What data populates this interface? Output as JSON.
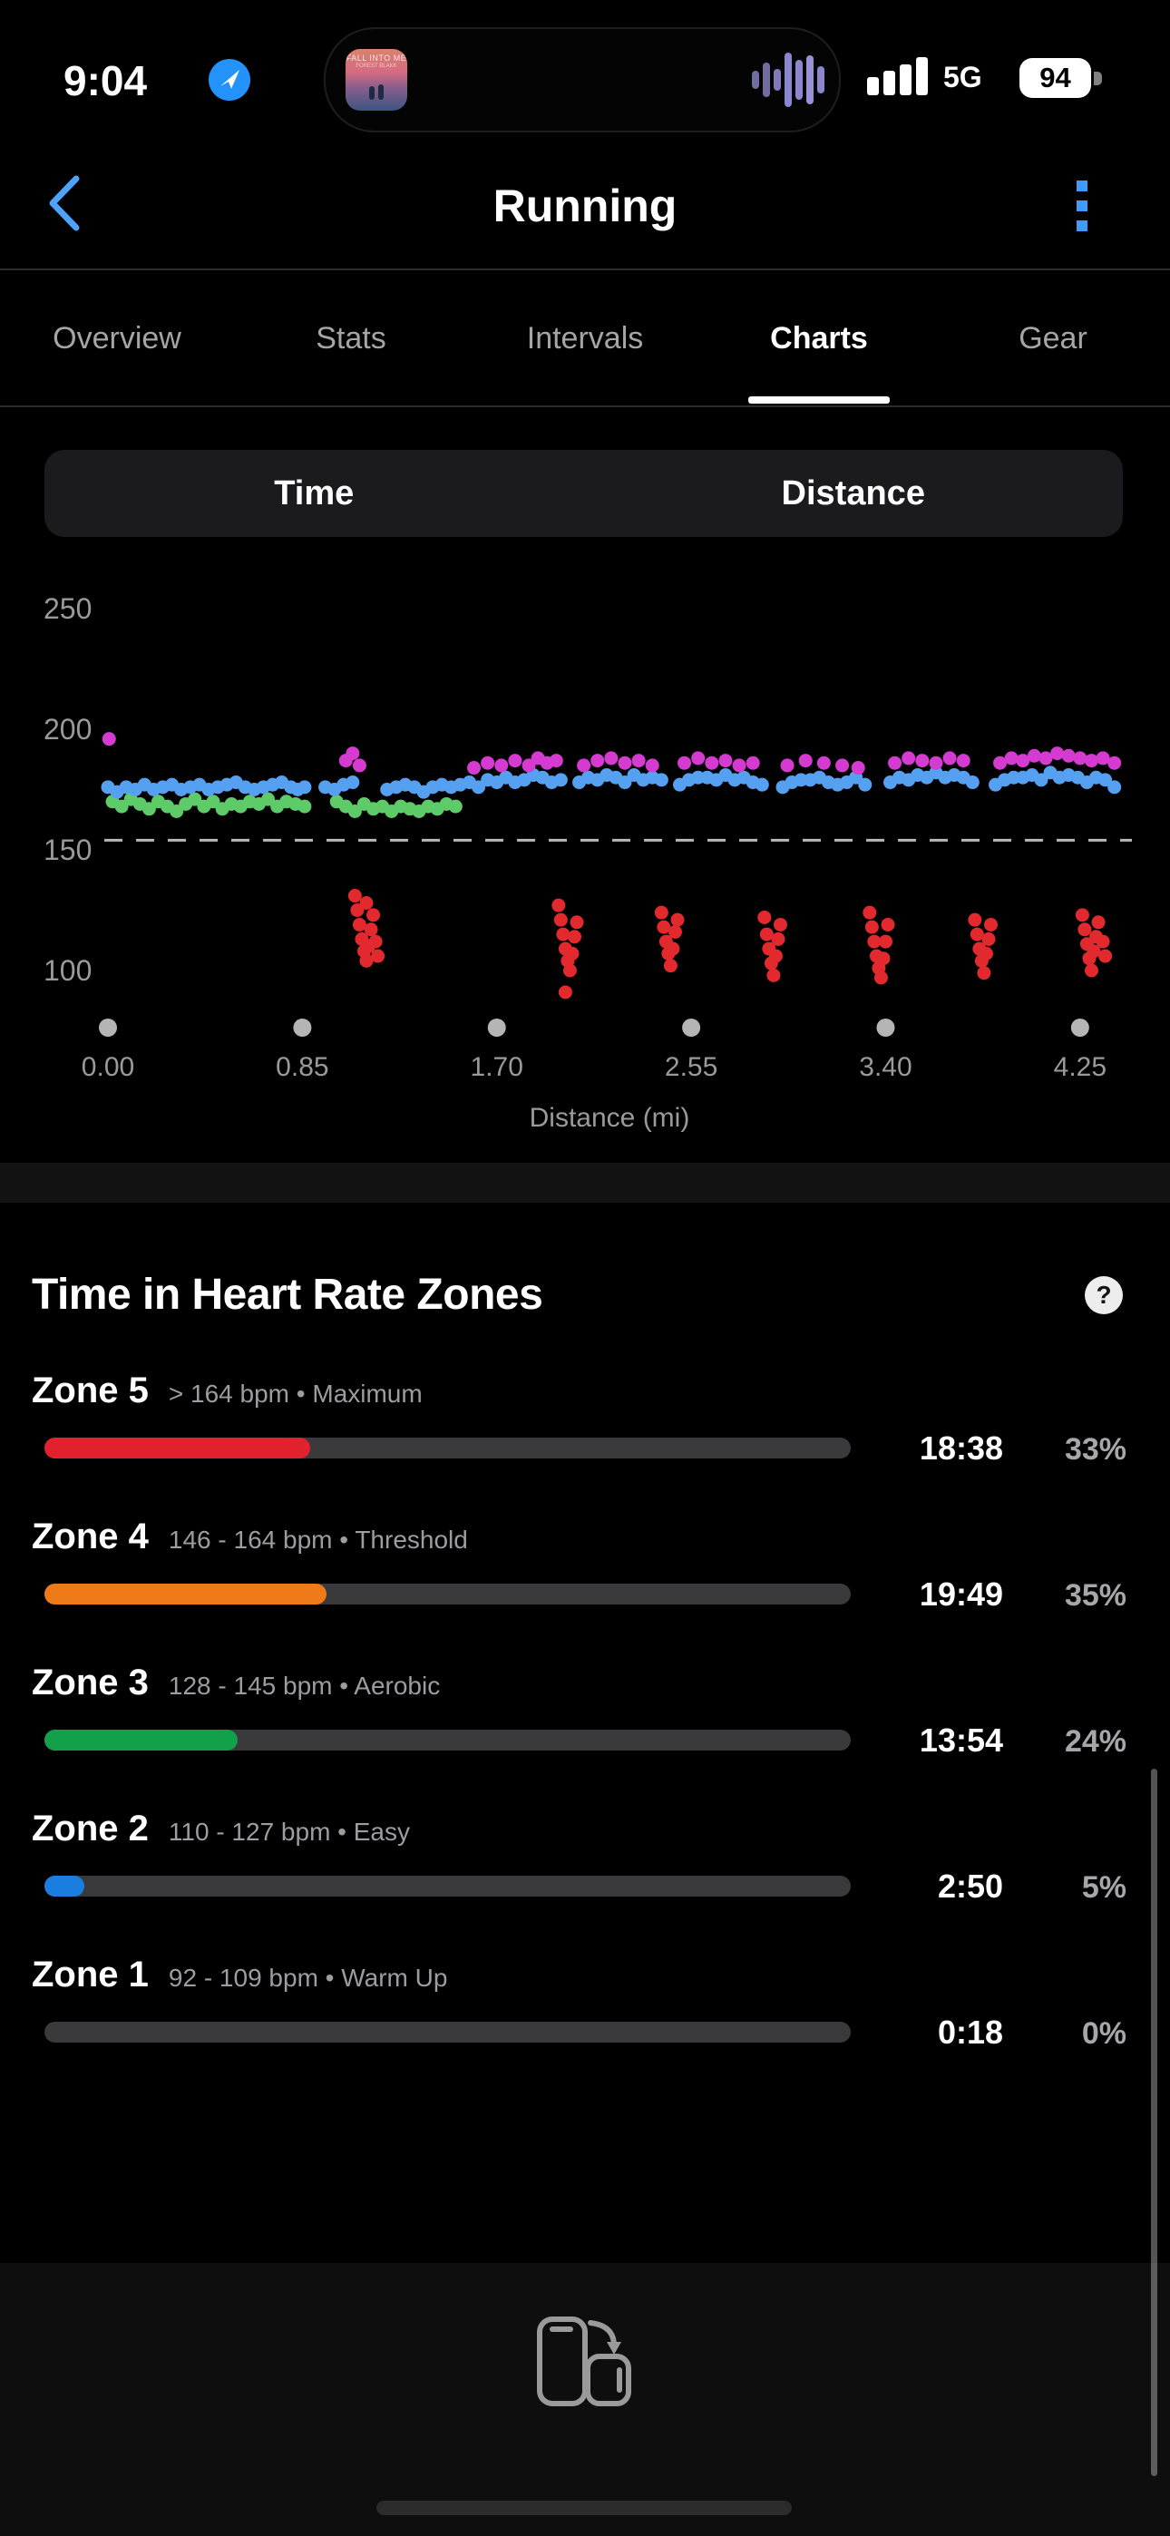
{
  "status_bar": {
    "time": "9:04",
    "network_label": "5G",
    "battery_percent": "94",
    "artwork_line1": "FALL INTO ME",
    "artwork_line2": "FOREST BLAKK"
  },
  "nav": {
    "title": "Running"
  },
  "tabs": {
    "items": [
      "Overview",
      "Stats",
      "Intervals",
      "Charts",
      "Gear"
    ],
    "active": "Charts"
  },
  "segmented": {
    "left": "Time",
    "right": "Distance",
    "selected": "Distance"
  },
  "chart_data": {
    "type": "scatter",
    "xlabel": "Distance (mi)",
    "x_ticks": [
      "0.00",
      "0.85",
      "1.70",
      "2.55",
      "3.40",
      "4.25"
    ],
    "x_tick_values": [
      0,
      0.85,
      1.7,
      2.55,
      3.4,
      4.25
    ],
    "y_ticks": [
      250,
      200,
      150,
      100
    ],
    "x_range": [
      0,
      4.45
    ],
    "y_range": [
      85,
      262
    ],
    "threshold_value": 154,
    "grid": "off",
    "legend": "none",
    "point_colors": {
      "high": "#d53bd0",
      "mid": "#56a0f2",
      "low": "#5ecb69",
      "walk": "#e22a2e"
    },
    "series": [
      {
        "name": "low",
        "points": [
          [
            0.02,
            170
          ],
          [
            0.06,
            168
          ],
          [
            0.1,
            171
          ],
          [
            0.14,
            169
          ],
          [
            0.18,
            167
          ],
          [
            0.22,
            170
          ],
          [
            0.26,
            168
          ],
          [
            0.3,
            166
          ],
          [
            0.34,
            169
          ],
          [
            0.38,
            171
          ],
          [
            0.42,
            168
          ],
          [
            0.46,
            170
          ],
          [
            0.5,
            167
          ],
          [
            0.54,
            169
          ],
          [
            0.58,
            168
          ],
          [
            0.62,
            170
          ],
          [
            0.66,
            169
          ],
          [
            0.7,
            171
          ],
          [
            0.74,
            168
          ],
          [
            0.78,
            170
          ],
          [
            0.82,
            169
          ],
          [
            0.86,
            168
          ],
          [
            1.0,
            170
          ],
          [
            1.04,
            168
          ],
          [
            1.08,
            166
          ],
          [
            1.12,
            169
          ],
          [
            1.16,
            167
          ],
          [
            1.2,
            168
          ],
          [
            1.24,
            166
          ],
          [
            1.28,
            168
          ],
          [
            1.32,
            167
          ],
          [
            1.36,
            166
          ],
          [
            1.4,
            168
          ],
          [
            1.44,
            167
          ],
          [
            1.48,
            169
          ],
          [
            1.52,
            168
          ]
        ]
      },
      {
        "name": "mid",
        "points": [
          [
            0.0,
            176
          ],
          [
            0.04,
            174
          ],
          [
            0.08,
            176
          ],
          [
            0.12,
            175
          ],
          [
            0.16,
            177
          ],
          [
            0.2,
            175
          ],
          [
            0.24,
            176
          ],
          [
            0.28,
            177
          ],
          [
            0.32,
            175
          ],
          [
            0.36,
            176
          ],
          [
            0.4,
            177
          ],
          [
            0.44,
            175
          ],
          [
            0.48,
            176
          ],
          [
            0.52,
            177
          ],
          [
            0.56,
            178
          ],
          [
            0.6,
            176
          ],
          [
            0.64,
            175
          ],
          [
            0.68,
            176
          ],
          [
            0.72,
            177
          ],
          [
            0.76,
            178
          ],
          [
            0.8,
            176
          ],
          [
            0.83,
            175
          ],
          [
            0.86,
            176
          ],
          [
            0.95,
            176
          ],
          [
            0.99,
            175
          ],
          [
            1.03,
            177
          ],
          [
            1.07,
            178
          ],
          [
            1.22,
            175
          ],
          [
            1.26,
            176
          ],
          [
            1.3,
            177
          ],
          [
            1.34,
            176
          ],
          [
            1.38,
            174
          ],
          [
            1.42,
            176
          ],
          [
            1.46,
            177
          ],
          [
            1.5,
            176
          ],
          [
            1.54,
            177
          ],
          [
            1.58,
            178
          ],
          [
            1.62,
            176
          ],
          [
            1.66,
            179
          ],
          [
            1.7,
            178
          ],
          [
            1.74,
            180
          ],
          [
            1.78,
            178
          ],
          [
            1.82,
            179
          ],
          [
            1.86,
            181
          ],
          [
            1.9,
            180
          ],
          [
            1.94,
            178
          ],
          [
            1.98,
            179
          ],
          [
            2.06,
            178
          ],
          [
            2.1,
            180
          ],
          [
            2.14,
            179
          ],
          [
            2.18,
            181
          ],
          [
            2.22,
            180
          ],
          [
            2.26,
            178
          ],
          [
            2.3,
            181
          ],
          [
            2.34,
            179
          ],
          [
            2.38,
            180
          ],
          [
            2.42,
            179
          ],
          [
            2.5,
            177
          ],
          [
            2.54,
            179
          ],
          [
            2.58,
            180
          ],
          [
            2.62,
            180
          ],
          [
            2.66,
            179
          ],
          [
            2.7,
            181
          ],
          [
            2.74,
            179
          ],
          [
            2.78,
            180
          ],
          [
            2.82,
            178
          ],
          [
            2.86,
            177
          ],
          [
            2.95,
            176
          ],
          [
            2.99,
            178
          ],
          [
            3.03,
            179
          ],
          [
            3.07,
            179
          ],
          [
            3.11,
            180
          ],
          [
            3.15,
            178
          ],
          [
            3.19,
            177
          ],
          [
            3.23,
            178
          ],
          [
            3.27,
            180
          ],
          [
            3.31,
            177
          ],
          [
            3.42,
            178
          ],
          [
            3.46,
            180
          ],
          [
            3.5,
            179
          ],
          [
            3.54,
            181
          ],
          [
            3.58,
            180
          ],
          [
            3.62,
            182
          ],
          [
            3.66,
            180
          ],
          [
            3.7,
            181
          ],
          [
            3.74,
            180
          ],
          [
            3.78,
            178
          ],
          [
            3.88,
            177
          ],
          [
            3.92,
            179
          ],
          [
            3.96,
            180
          ],
          [
            4.0,
            180
          ],
          [
            4.04,
            181
          ],
          [
            4.08,
            179
          ],
          [
            4.12,
            182
          ],
          [
            4.16,
            180
          ],
          [
            4.2,
            181
          ],
          [
            4.24,
            180
          ],
          [
            4.28,
            178
          ],
          [
            4.32,
            180
          ],
          [
            4.36,
            179
          ],
          [
            4.4,
            176
          ]
        ]
      },
      {
        "name": "high",
        "points": [
          [
            0.005,
            196
          ],
          [
            1.04,
            187
          ],
          [
            1.07,
            190
          ],
          [
            1.1,
            185
          ],
          [
            1.6,
            184
          ],
          [
            1.66,
            186
          ],
          [
            1.72,
            185
          ],
          [
            1.78,
            187
          ],
          [
            1.84,
            185
          ],
          [
            1.88,
            188
          ],
          [
            1.92,
            186
          ],
          [
            1.96,
            187
          ],
          [
            2.08,
            185
          ],
          [
            2.14,
            187
          ],
          [
            2.2,
            188
          ],
          [
            2.26,
            186
          ],
          [
            2.32,
            187
          ],
          [
            2.38,
            185
          ],
          [
            2.52,
            186
          ],
          [
            2.58,
            188
          ],
          [
            2.64,
            186
          ],
          [
            2.7,
            187
          ],
          [
            2.76,
            185
          ],
          [
            2.82,
            186
          ],
          [
            2.97,
            185
          ],
          [
            3.05,
            187
          ],
          [
            3.13,
            186
          ],
          [
            3.21,
            185
          ],
          [
            3.28,
            184
          ],
          [
            3.44,
            186
          ],
          [
            3.5,
            188
          ],
          [
            3.56,
            187
          ],
          [
            3.62,
            186
          ],
          [
            3.68,
            188
          ],
          [
            3.74,
            187
          ],
          [
            3.9,
            186
          ],
          [
            3.95,
            188
          ],
          [
            4.0,
            187
          ],
          [
            4.05,
            189
          ],
          [
            4.1,
            188
          ],
          [
            4.15,
            190
          ],
          [
            4.2,
            189
          ],
          [
            4.25,
            188
          ],
          [
            4.3,
            187
          ],
          [
            4.35,
            188
          ],
          [
            4.4,
            186
          ]
        ]
      },
      {
        "name": "walk",
        "points": [
          [
            1.08,
            131
          ],
          [
            1.09,
            125
          ],
          [
            1.1,
            119
          ],
          [
            1.11,
            113
          ],
          [
            1.12,
            108
          ],
          [
            1.13,
            104
          ],
          [
            1.13,
            128
          ],
          [
            1.14,
            110
          ],
          [
            1.15,
            117
          ],
          [
            1.16,
            123
          ],
          [
            1.17,
            112
          ],
          [
            1.18,
            106
          ],
          [
            1.97,
            127
          ],
          [
            1.98,
            121
          ],
          [
            1.99,
            115
          ],
          [
            2.0,
            109
          ],
          [
            2.01,
            104
          ],
          [
            2.02,
            100
          ],
          [
            2.03,
            107
          ],
          [
            2.04,
            114
          ],
          [
            2.05,
            120
          ],
          [
            2.0,
            91
          ],
          [
            2.42,
            124
          ],
          [
            2.43,
            118
          ],
          [
            2.44,
            112
          ],
          [
            2.45,
            107
          ],
          [
            2.46,
            102
          ],
          [
            2.47,
            109
          ],
          [
            2.48,
            116
          ],
          [
            2.49,
            121
          ],
          [
            2.87,
            122
          ],
          [
            2.88,
            115
          ],
          [
            2.89,
            109
          ],
          [
            2.9,
            103
          ],
          [
            2.91,
            98
          ],
          [
            2.92,
            106
          ],
          [
            2.93,
            113
          ],
          [
            2.94,
            119
          ],
          [
            3.33,
            124
          ],
          [
            3.34,
            118
          ],
          [
            3.35,
            112
          ],
          [
            3.36,
            106
          ],
          [
            3.37,
            101
          ],
          [
            3.38,
            97
          ],
          [
            3.39,
            105
          ],
          [
            3.4,
            112
          ],
          [
            3.41,
            119
          ],
          [
            3.79,
            121
          ],
          [
            3.8,
            115
          ],
          [
            3.81,
            109
          ],
          [
            3.82,
            104
          ],
          [
            3.83,
            99
          ],
          [
            3.84,
            107
          ],
          [
            3.85,
            113
          ],
          [
            3.86,
            119
          ],
          [
            4.26,
            123
          ],
          [
            4.27,
            117
          ],
          [
            4.28,
            111
          ],
          [
            4.29,
            105
          ],
          [
            4.3,
            100
          ],
          [
            4.31,
            108
          ],
          [
            4.32,
            114
          ],
          [
            4.33,
            120
          ],
          [
            4.35,
            112
          ],
          [
            4.36,
            106
          ]
        ]
      }
    ]
  },
  "zones_section": {
    "title": "Time in Heart Rate Zones",
    "help_glyph": "?",
    "zones": [
      {
        "name": "Zone 5",
        "range": "> 164 bpm • Maximum",
        "time": "18:38",
        "percent": "33%",
        "percent_value": 33,
        "color": "#e3212e"
      },
      {
        "name": "Zone 4",
        "range": "146 - 164 bpm • Threshold",
        "time": "19:49",
        "percent": "35%",
        "percent_value": 35,
        "color": "#ee7a18"
      },
      {
        "name": "Zone 3",
        "range": "128 - 145 bpm • Aerobic",
        "time": "13:54",
        "percent": "24%",
        "percent_value": 24,
        "color": "#13a04b"
      },
      {
        "name": "Zone 2",
        "range": "110 - 127 bpm • Easy",
        "time": "2:50",
        "percent": "5%",
        "percent_value": 5,
        "color": "#1a7ee0"
      },
      {
        "name": "Zone 1",
        "range": "92 - 109 bpm • Warm Up",
        "time": "0:18",
        "percent": "0%",
        "percent_value": 0,
        "color": "#8e8e93"
      }
    ]
  }
}
